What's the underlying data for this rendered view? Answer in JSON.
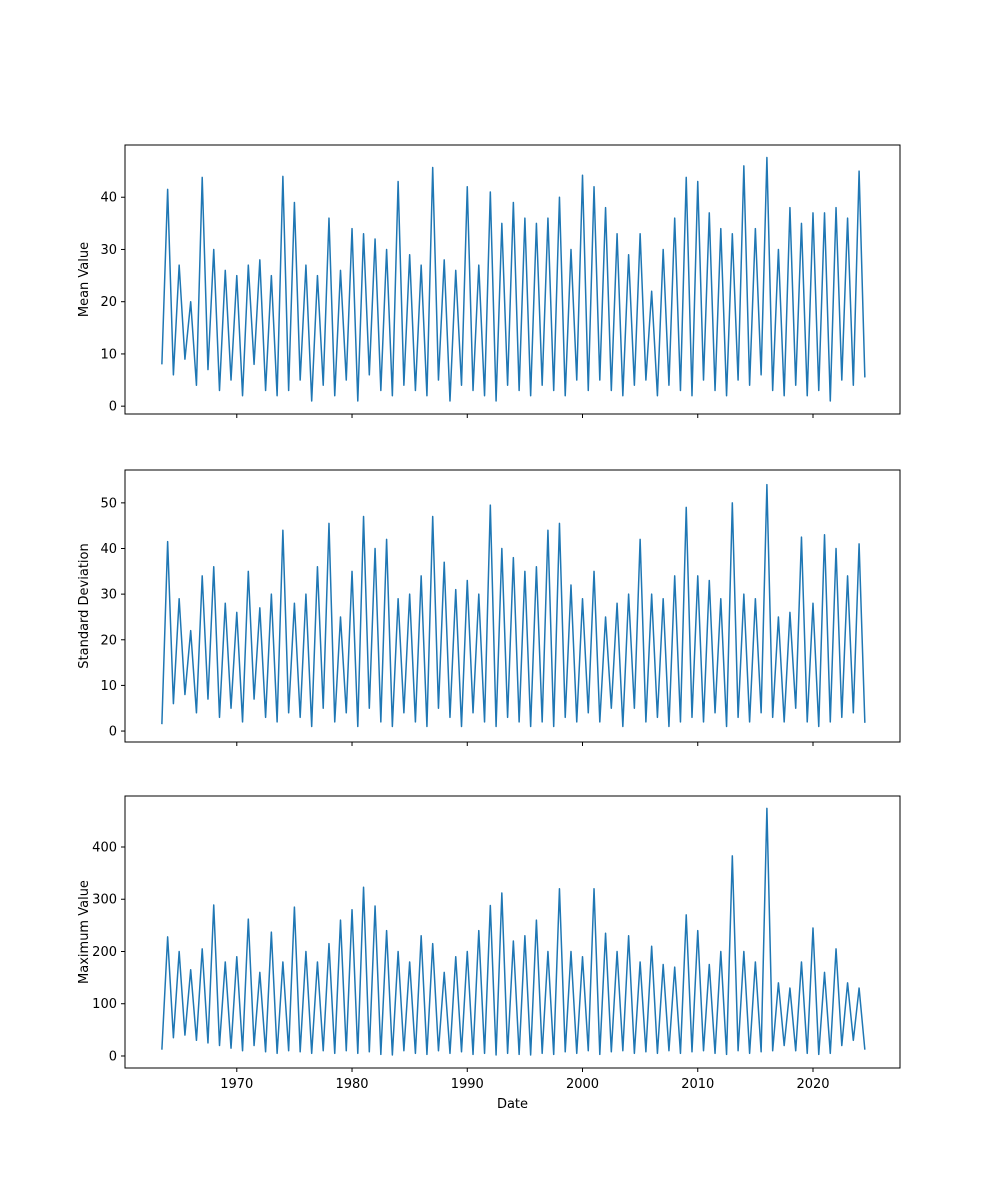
{
  "chart_data": [
    {
      "type": "line",
      "ylabel": "Mean Value",
      "color": "#1f77b4",
      "x": [
        1963.5,
        1964,
        1964.5,
        1965,
        1965.5,
        1966,
        1966.5,
        1967,
        1967.5,
        1968,
        1968.5,
        1969,
        1969.5,
        1970,
        1970.5,
        1971,
        1971.5,
        1972,
        1972.5,
        1973,
        1973.5,
        1974,
        1974.5,
        1975,
        1975.5,
        1976,
        1976.5,
        1977,
        1977.5,
        1978,
        1978.5,
        1979,
        1979.5,
        1980,
        1980.5,
        1981,
        1981.5,
        1982,
        1982.5,
        1983,
        1983.5,
        1984,
        1984.5,
        1985,
        1985.5,
        1986,
        1986.5,
        1987,
        1987.5,
        1988,
        1988.5,
        1989,
        1989.5,
        1990,
        1990.5,
        1991,
        1991.5,
        1992,
        1992.5,
        1993,
        1993.5,
        1994,
        1994.5,
        1995,
        1995.5,
        1996,
        1996.5,
        1997,
        1997.5,
        1998,
        1998.5,
        1999,
        1999.5,
        2000,
        2000.5,
        2001,
        2001.5,
        2002,
        2002.5,
        2003,
        2003.5,
        2004,
        2004.5,
        2005,
        2005.5,
        2006,
        2006.5,
        2007,
        2007.5,
        2008,
        2008.5,
        2009,
        2009.5,
        2010,
        2010.5,
        2011,
        2011.5,
        2012,
        2012.5,
        2013,
        2013.5,
        2014,
        2014.5,
        2015,
        2015.5,
        2016,
        2016.5,
        2017,
        2017.5,
        2018,
        2018.5,
        2019,
        2019.5,
        2020,
        2020.5,
        2021,
        2021.5,
        2022,
        2022.5,
        2023,
        2023.5,
        2024,
        2024.5
      ],
      "values": [
        8,
        41.5,
        6,
        27,
        9,
        20,
        4,
        43.8,
        7,
        30,
        3,
        26,
        5,
        25,
        2,
        27,
        8,
        28,
        3,
        25,
        2,
        44,
        3,
        39,
        5,
        27,
        1,
        25,
        4,
        36,
        2,
        26,
        5,
        34,
        1,
        33,
        6,
        32,
        3,
        30,
        2,
        43,
        4,
        29,
        3,
        27,
        2,
        45.7,
        5,
        28,
        1,
        26,
        4,
        42,
        3,
        27,
        2,
        41,
        1,
        35,
        4,
        39,
        3,
        36,
        2,
        35,
        4,
        36,
        3,
        40,
        2,
        30,
        5,
        44.2,
        3,
        42,
        5,
        38,
        3,
        33,
        2,
        29,
        4,
        33,
        5,
        22,
        2,
        30,
        4,
        36,
        3,
        43.8,
        2,
        43,
        5,
        37,
        3,
        34,
        2,
        33,
        5,
        46,
        4,
        34,
        6,
        47.6,
        3,
        30,
        2,
        38,
        4,
        35,
        2,
        37,
        3,
        37,
        1,
        38,
        5,
        36,
        4,
        45,
        5.5
      ],
      "xlim": [
        1960.3,
        2027.55
      ],
      "ylim": [
        -1.5,
        50
      ],
      "yticks": [
        0,
        10,
        20,
        30,
        40
      ]
    },
    {
      "type": "line",
      "ylabel": "Standard Deviation",
      "color": "#1f77b4",
      "x": [
        1963.5,
        1964,
        1964.5,
        1965,
        1965.5,
        1966,
        1966.5,
        1967,
        1967.5,
        1968,
        1968.5,
        1969,
        1969.5,
        1970,
        1970.5,
        1971,
        1971.5,
        1972,
        1972.5,
        1973,
        1973.5,
        1974,
        1974.5,
        1975,
        1975.5,
        1976,
        1976.5,
        1977,
        1977.5,
        1978,
        1978.5,
        1979,
        1979.5,
        1980,
        1980.5,
        1981,
        1981.5,
        1982,
        1982.5,
        1983,
        1983.5,
        1984,
        1984.5,
        1985,
        1985.5,
        1986,
        1986.5,
        1987,
        1987.5,
        1988,
        1988.5,
        1989,
        1989.5,
        1990,
        1990.5,
        1991,
        1991.5,
        1992,
        1992.5,
        1993,
        1993.5,
        1994,
        1994.5,
        1995,
        1995.5,
        1996,
        1996.5,
        1997,
        1997.5,
        1998,
        1998.5,
        1999,
        1999.5,
        2000,
        2000.5,
        2001,
        2001.5,
        2002,
        2002.5,
        2003,
        2003.5,
        2004,
        2004.5,
        2005,
        2005.5,
        2006,
        2006.5,
        2007,
        2007.5,
        2008,
        2008.5,
        2009,
        2009.5,
        2010,
        2010.5,
        2011,
        2011.5,
        2012,
        2012.5,
        2013,
        2013.5,
        2014,
        2014.5,
        2015,
        2015.5,
        2016,
        2016.5,
        2017,
        2017.5,
        2018,
        2018.5,
        2019,
        2019.5,
        2020,
        2020.5,
        2021,
        2021.5,
        2022,
        2022.5,
        2023,
        2023.5,
        2024,
        2024.5
      ],
      "values": [
        1.5,
        41.5,
        6,
        29,
        8,
        22,
        4,
        34,
        7,
        36,
        3,
        28,
        5,
        26,
        2,
        35,
        7,
        27,
        3,
        30,
        2,
        44,
        4,
        28,
        3,
        30,
        1,
        36,
        5,
        45.5,
        2,
        25,
        4,
        35,
        1,
        47,
        5,
        40,
        2,
        42,
        1,
        29,
        4,
        30,
        2,
        34,
        1,
        47,
        5,
        37,
        3,
        31,
        1,
        33,
        4,
        30,
        2,
        49.5,
        1,
        40,
        3,
        38,
        2,
        35,
        1,
        36,
        2,
        44,
        1,
        45.5,
        3,
        32,
        2,
        29,
        4,
        35,
        2,
        25,
        5,
        28,
        1,
        30,
        5,
        42,
        2,
        30,
        3,
        29,
        1,
        34,
        2,
        49,
        3,
        34,
        2,
        33,
        4,
        29,
        1,
        50,
        3,
        30,
        2,
        29,
        4,
        54,
        3,
        25,
        2,
        26,
        5,
        42.5,
        2,
        28,
        1,
        43,
        2,
        40,
        3,
        34,
        4,
        41,
        1.8
      ],
      "xlim": [
        1960.3,
        2027.55
      ],
      "ylim": [
        -2.4,
        57.2
      ],
      "yticks": [
        0,
        10,
        20,
        30,
        40,
        50
      ]
    },
    {
      "type": "line",
      "ylabel": "Maximum Value",
      "xlabel": "Date",
      "color": "#1f77b4",
      "x": [
        1963.5,
        1964,
        1964.5,
        1965,
        1965.5,
        1966,
        1966.5,
        1967,
        1967.5,
        1968,
        1968.5,
        1969,
        1969.5,
        1970,
        1970.5,
        1971,
        1971.5,
        1972,
        1972.5,
        1973,
        1973.5,
        1974,
        1974.5,
        1975,
        1975.5,
        1976,
        1976.5,
        1977,
        1977.5,
        1978,
        1978.5,
        1979,
        1979.5,
        1980,
        1980.5,
        1981,
        1981.5,
        1982,
        1982.5,
        1983,
        1983.5,
        1984,
        1984.5,
        1985,
        1985.5,
        1986,
        1986.5,
        1987,
        1987.5,
        1988,
        1988.5,
        1989,
        1989.5,
        1990,
        1990.5,
        1991,
        1991.5,
        1992,
        1992.5,
        1993,
        1993.5,
        1994,
        1994.5,
        1995,
        1995.5,
        1996,
        1996.5,
        1997,
        1997.5,
        1998,
        1998.5,
        1999,
        1999.5,
        2000,
        2000.5,
        2001,
        2001.5,
        2002,
        2002.5,
        2003,
        2003.5,
        2004,
        2004.5,
        2005,
        2005.5,
        2006,
        2006.5,
        2007,
        2007.5,
        2008,
        2008.5,
        2009,
        2009.5,
        2010,
        2010.5,
        2011,
        2011.5,
        2012,
        2012.5,
        2013,
        2013.5,
        2014,
        2014.5,
        2015,
        2015.5,
        2016,
        2016.5,
        2017,
        2017.5,
        2018,
        2018.5,
        2019,
        2019.5,
        2020,
        2020.5,
        2021,
        2021.5,
        2022,
        2022.5,
        2023,
        2023.5,
        2024,
        2024.5
      ],
      "values": [
        12,
        228,
        35,
        200,
        40,
        165,
        30,
        205,
        25,
        289,
        20,
        180,
        15,
        190,
        10,
        262,
        20,
        160,
        8,
        237,
        5,
        180,
        10,
        285,
        8,
        200,
        5,
        180,
        10,
        215,
        5,
        260,
        10,
        280,
        5,
        323,
        8,
        287,
        3,
        240,
        2,
        200,
        10,
        180,
        5,
        230,
        3,
        215,
        10,
        160,
        5,
        190,
        8,
        200,
        3,
        240,
        5,
        288,
        2,
        312,
        5,
        220,
        3,
        230,
        2,
        260,
        5,
        200,
        3,
        320,
        8,
        200,
        5,
        190,
        10,
        320,
        3,
        235,
        8,
        200,
        10,
        230,
        5,
        180,
        8,
        210,
        5,
        175,
        10,
        170,
        5,
        270,
        8,
        240,
        10,
        175,
        5,
        200,
        3,
        383,
        10,
        200,
        5,
        180,
        8,
        474,
        10,
        140,
        20,
        130,
        10,
        180,
        5,
        245,
        3,
        160,
        5,
        205,
        20,
        140,
        30,
        130,
        12
      ],
      "xlim": [
        1960.3,
        2027.55
      ],
      "ylim": [
        -23,
        497.6
      ],
      "yticks": [
        0,
        100,
        200,
        300,
        400
      ],
      "xticks": [
        1970,
        1980,
        1990,
        2000,
        2010,
        2020
      ]
    }
  ]
}
